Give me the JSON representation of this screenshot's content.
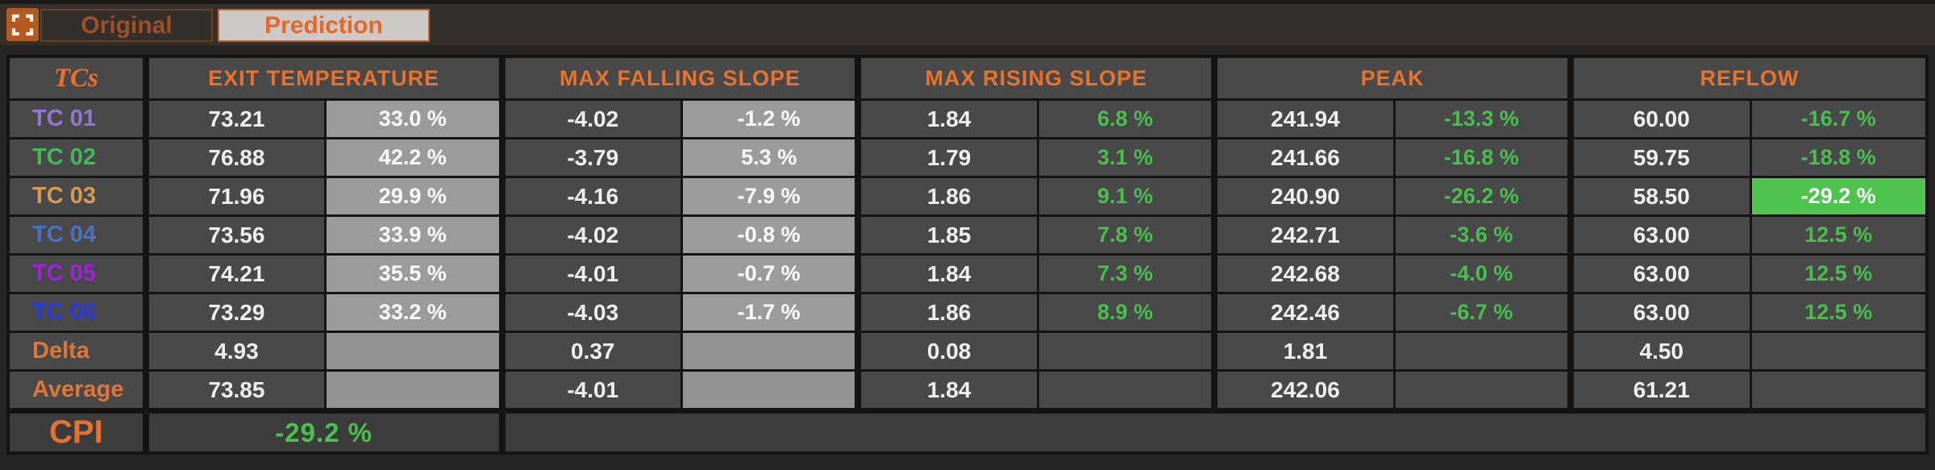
{
  "top_bar": {
    "expand_icon": "expand-icon",
    "tabs": [
      {
        "label": "Original",
        "active": false
      },
      {
        "label": "Prediction",
        "active": true
      }
    ]
  },
  "table": {
    "tcs_header": "TCs",
    "sections": [
      "EXIT TEMPERATURE",
      "MAX FALLING SLOPE",
      "MAX RISING SLOPE",
      "PEAK",
      "REFLOW"
    ],
    "rows": [
      {
        "label": "TC 01",
        "color": "#9179cf",
        "exit": "73.21",
        "exit_pct": "33.0 %",
        "fall": "-4.02",
        "fall_pct": "-1.2 %",
        "rise": "1.84",
        "rise_pct": "6.8 %",
        "peak": "241.94",
        "peak_pct": "-13.3 %",
        "reflow": "60.00",
        "reflow_pct": "-16.7 %"
      },
      {
        "label": "TC 02",
        "color": "#41ba58",
        "exit": "76.88",
        "exit_pct": "42.2 %",
        "fall": "-3.79",
        "fall_pct": "5.3 %",
        "rise": "1.79",
        "rise_pct": "3.1 %",
        "peak": "241.66",
        "peak_pct": "-16.8 %",
        "reflow": "59.75",
        "reflow_pct": "-18.8 %"
      },
      {
        "label": "TC 03",
        "color": "#d79b51",
        "exit": "71.96",
        "exit_pct": "29.9 %",
        "fall": "-4.16",
        "fall_pct": "-7.9 %",
        "rise": "1.86",
        "rise_pct": "9.1 %",
        "peak": "240.90",
        "peak_pct": "-26.2 %",
        "reflow": "58.50",
        "reflow_pct": "-29.2 %",
        "highlight": "reflow_pct"
      },
      {
        "label": "TC 04",
        "color": "#4c72c8",
        "exit": "73.56",
        "exit_pct": "33.9 %",
        "fall": "-4.02",
        "fall_pct": "-0.8 %",
        "rise": "1.85",
        "rise_pct": "7.8 %",
        "peak": "242.71",
        "peak_pct": "-3.6 %",
        "reflow": "63.00",
        "reflow_pct": "12.5 %"
      },
      {
        "label": "TC 05",
        "color": "#a122dd",
        "exit": "74.21",
        "exit_pct": "35.5 %",
        "fall": "-4.01",
        "fall_pct": "-0.7 %",
        "rise": "1.84",
        "rise_pct": "7.3 %",
        "peak": "242.68",
        "peak_pct": "-4.0 %",
        "reflow": "63.00",
        "reflow_pct": "12.5 %"
      },
      {
        "label": "TC 06",
        "color": "#2a36e0",
        "exit": "73.29",
        "exit_pct": "33.2 %",
        "fall": "-4.03",
        "fall_pct": "-1.7 %",
        "rise": "1.86",
        "rise_pct": "8.9 %",
        "peak": "242.46",
        "peak_pct": "-6.7 %",
        "reflow": "63.00",
        "reflow_pct": "12.5 %"
      },
      {
        "label": "Delta",
        "color": "#e0763a",
        "summary": true,
        "exit": "4.93",
        "exit_pct": "",
        "fall": "0.37",
        "fall_pct": "",
        "rise": "0.08",
        "rise_pct": "",
        "peak": "1.81",
        "peak_pct": "",
        "reflow": "4.50",
        "reflow_pct": ""
      },
      {
        "label": "Average",
        "color": "#e0763a",
        "summary": true,
        "exit": "73.85",
        "exit_pct": "",
        "fall": "-4.01",
        "fall_pct": "",
        "rise": "1.84",
        "rise_pct": "",
        "peak": "242.06",
        "peak_pct": "",
        "reflow": "61.21",
        "reflow_pct": ""
      }
    ],
    "cpi": {
      "label": "CPI",
      "value": "-29.2 %"
    }
  },
  "colors": {
    "accent_orange": "#e8732e",
    "green_text": "#49bf4e",
    "green_highlight": "#4ec44f",
    "gray_pct_cell": "#9b9b9b",
    "cell_dark": "#494949",
    "cpi_row": "#3c3c3c"
  }
}
